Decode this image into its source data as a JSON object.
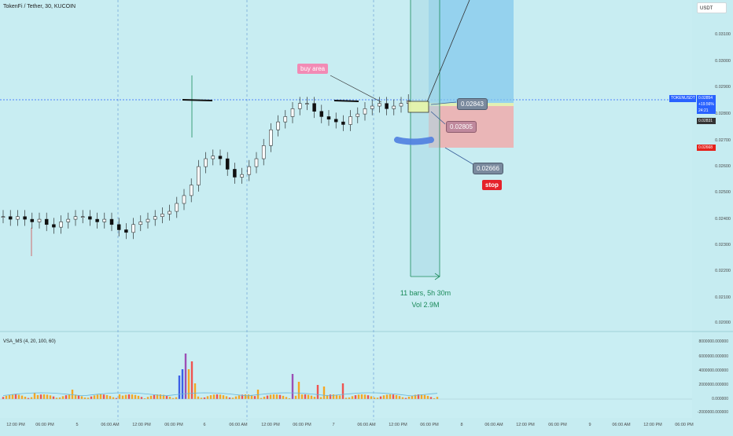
{
  "header": {
    "title": "TokenFi / Tether, 30, KUCOIN",
    "currency": "USDT"
  },
  "price_axis": [
    "0.03100",
    "0.03000",
    "0.02900",
    "0.02800",
    "0.02700",
    "0.02600",
    "0.02500",
    "0.02400",
    "0.02300",
    "0.02200",
    "0.02100",
    "0.02000"
  ],
  "volume_axis": [
    "8000000.000000",
    "6000000.000000",
    "4000000.000000",
    "2000000.000000",
    "0.000000",
    "-2000000.000000"
  ],
  "time_axis": [
    "12:00 PM",
    "06:00 PM",
    "5",
    "06:00 AM",
    "12:00 PM",
    "06:00 PM",
    "6",
    "06:00 AM",
    "12:00 PM",
    "06:00 PM",
    "7",
    "06:00 AM",
    "12:00 PM",
    "06:00 PM",
    "8",
    "06:00 AM",
    "12:00 PM",
    "06:00 PM",
    "9",
    "06:00 AM",
    "12:00 PM",
    "06:00 PM"
  ],
  "price_tags": {
    "symbol": "TOKENUSDT",
    "last": "0.02854",
    "change": "+19.56%",
    "countdown": "24:21",
    "prev": "0.02831",
    "stop_level": "0.02668"
  },
  "annotations": {
    "buy_area": "buy area",
    "entry1": "0.02843",
    "entry2": "0.02805",
    "stop_price": "0.02666",
    "stop_label": "stop"
  },
  "measure": {
    "bars": "11 bars, 5h 30m",
    "vol": "Vol 2.9M"
  },
  "indicator": {
    "name": "VSA_MS (4, 20, 100, 60)"
  },
  "colors": {
    "up": "#0f0f0f",
    "down": "#0f0f0f",
    "volume_red": "#ef5350",
    "volume_orange": "#f5a623",
    "volume_blue": "#3c5fe6",
    "volume_purple": "#9c4fb5",
    "target_zone": "#7fc6ec",
    "stop_zone": "#f2a8a8"
  },
  "chart_data": {
    "type": "candlestick",
    "timeframe": "30",
    "symbol": "TOKENUSDT",
    "close": [
      0.0241,
      0.024,
      0.0241,
      0.024,
      0.0239,
      0.024,
      0.0238,
      0.0237,
      0.0239,
      0.024,
      0.0241,
      0.0241,
      0.024,
      0.0239,
      0.024,
      0.0238,
      0.0236,
      0.0235,
      0.0238,
      0.0239,
      0.024,
      0.0241,
      0.0242,
      0.0243,
      0.0246,
      0.0249,
      0.0253,
      0.026,
      0.0263,
      0.0264,
      0.0263,
      0.0259,
      0.0256,
      0.0257,
      0.026,
      0.0263,
      0.0268,
      0.0274,
      0.0277,
      0.0279,
      0.0282,
      0.0284,
      0.0284,
      0.0281,
      0.0279,
      0.0278,
      0.0277,
      0.0276,
      0.0279,
      0.028,
      0.0282,
      0.0283,
      0.0284,
      0.0282,
      0.0283,
      0.0284,
      0.0285
    ],
    "volume_peak": 6500000
  }
}
